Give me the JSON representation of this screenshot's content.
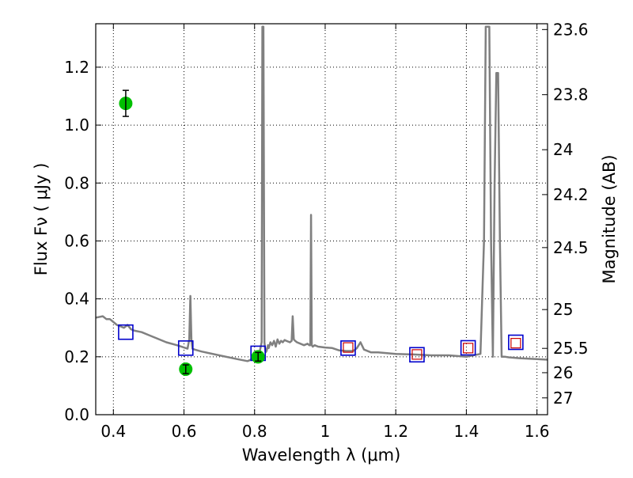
{
  "chart_data": {
    "type": "line",
    "title": "",
    "xlabel": "Wavelength  λ (μm)",
    "ylabel": "Flux  Fν  ( μJy )",
    "ylabel_right": "Magnitude (AB)",
    "xlim": [
      0.35,
      1.63
    ],
    "ylim": [
      0.0,
      1.35
    ],
    "grid": true,
    "x_ticks": [
      0.4,
      0.6,
      0.8,
      1.0,
      1.2,
      1.4,
      1.6
    ],
    "x_tick_labels": [
      "0.4",
      "0.6",
      "0.8",
      "1",
      "1.2",
      "1.4",
      "1.6"
    ],
    "y_ticks": [
      0.0,
      0.2,
      0.4,
      0.6,
      0.8,
      1.0,
      1.2
    ],
    "y_tick_labels": [
      "0.0",
      "0.2",
      "0.4",
      "0.6",
      "0.8",
      "1.0",
      "1.2"
    ],
    "right_ticks": [
      {
        "label": "23.6",
        "flux": 1.33
      },
      {
        "label": "23.8",
        "flux": 1.105
      },
      {
        "label": "24",
        "flux": 0.915
      },
      {
        "label": "24.2",
        "flux": 0.76
      },
      {
        "label": "24.5",
        "flux": 0.577
      },
      {
        "label": "25",
        "flux": 0.363
      },
      {
        "label": "25.5",
        "flux": 0.229
      },
      {
        "label": "26",
        "flux": 0.145
      },
      {
        "label": "27",
        "flux": 0.058
      }
    ],
    "series": [
      {
        "kind": "model-spectrum",
        "color": "#808080",
        "x": [
          0.35,
          0.37,
          0.38,
          0.39,
          0.4,
          0.41,
          0.42,
          0.43,
          0.44,
          0.45,
          0.46,
          0.48,
          0.5,
          0.52,
          0.55,
          0.58,
          0.6,
          0.61,
          0.615,
          0.618,
          0.621,
          0.624,
          0.63,
          0.65,
          0.7,
          0.75,
          0.78,
          0.8,
          0.81,
          0.815,
          0.82,
          0.822,
          0.825,
          0.828,
          0.831,
          0.834,
          0.838,
          0.84,
          0.845,
          0.85,
          0.855,
          0.86,
          0.865,
          0.87,
          0.875,
          0.88,
          0.885,
          0.89,
          0.9,
          0.905,
          0.908,
          0.911,
          0.915,
          0.92,
          0.93,
          0.94,
          0.95,
          0.955,
          0.958,
          0.96,
          0.962,
          0.965,
          0.97,
          0.98,
          1.0,
          1.02,
          1.04,
          1.06,
          1.08,
          1.09,
          1.1,
          1.11,
          1.13,
          1.15,
          1.2,
          1.25,
          1.3,
          1.35,
          1.4,
          1.44,
          1.45,
          1.455,
          1.46,
          1.465,
          1.47,
          1.475,
          1.48,
          1.485,
          1.49,
          1.495,
          1.5,
          1.51,
          1.52,
          1.55,
          1.6,
          1.63
        ],
        "y": [
          0.335,
          0.34,
          0.33,
          0.33,
          0.32,
          0.31,
          0.305,
          0.3,
          0.31,
          0.295,
          0.29,
          0.285,
          0.275,
          0.265,
          0.25,
          0.24,
          0.232,
          0.228,
          0.26,
          0.41,
          0.26,
          0.228,
          0.225,
          0.218,
          0.205,
          0.192,
          0.185,
          0.195,
          0.215,
          0.22,
          0.25,
          1.34,
          1.34,
          0.25,
          0.215,
          0.22,
          0.24,
          0.23,
          0.25,
          0.24,
          0.255,
          0.235,
          0.26,
          0.245,
          0.255,
          0.25,
          0.258,
          0.255,
          0.25,
          0.255,
          0.34,
          0.26,
          0.255,
          0.25,
          0.245,
          0.24,
          0.245,
          0.24,
          0.24,
          0.69,
          0.24,
          0.235,
          0.24,
          0.235,
          0.232,
          0.23,
          0.222,
          0.22,
          0.22,
          0.23,
          0.25,
          0.225,
          0.215,
          0.215,
          0.21,
          0.208,
          0.205,
          0.205,
          0.2,
          0.21,
          0.6,
          1.34,
          1.34,
          1.34,
          0.6,
          0.2,
          0.8,
          1.18,
          1.18,
          0.6,
          0.2,
          0.2,
          0.198,
          0.195,
          0.192,
          0.19
        ]
      },
      {
        "kind": "model-band-flux",
        "marker": "square",
        "color": "#0000cc",
        "x": [
          0.435,
          0.605,
          0.81,
          1.065,
          1.26,
          1.405,
          1.54
        ],
        "y": [
          0.285,
          0.23,
          0.212,
          0.23,
          0.207,
          0.231,
          0.25
        ]
      },
      {
        "kind": "model-band-flux-inner",
        "marker": "square",
        "color": "#cc0000",
        "x": [
          1.065,
          1.26,
          1.405,
          1.54
        ],
        "y": [
          0.232,
          0.208,
          0.23,
          0.247
        ]
      },
      {
        "kind": "observed",
        "marker": "circle",
        "color": "#00c000",
        "x": [
          0.435,
          0.605,
          0.81
        ],
        "y": [
          1.075,
          0.157,
          0.2
        ],
        "yerr": [
          0.045,
          0.015,
          0.015
        ]
      }
    ]
  }
}
